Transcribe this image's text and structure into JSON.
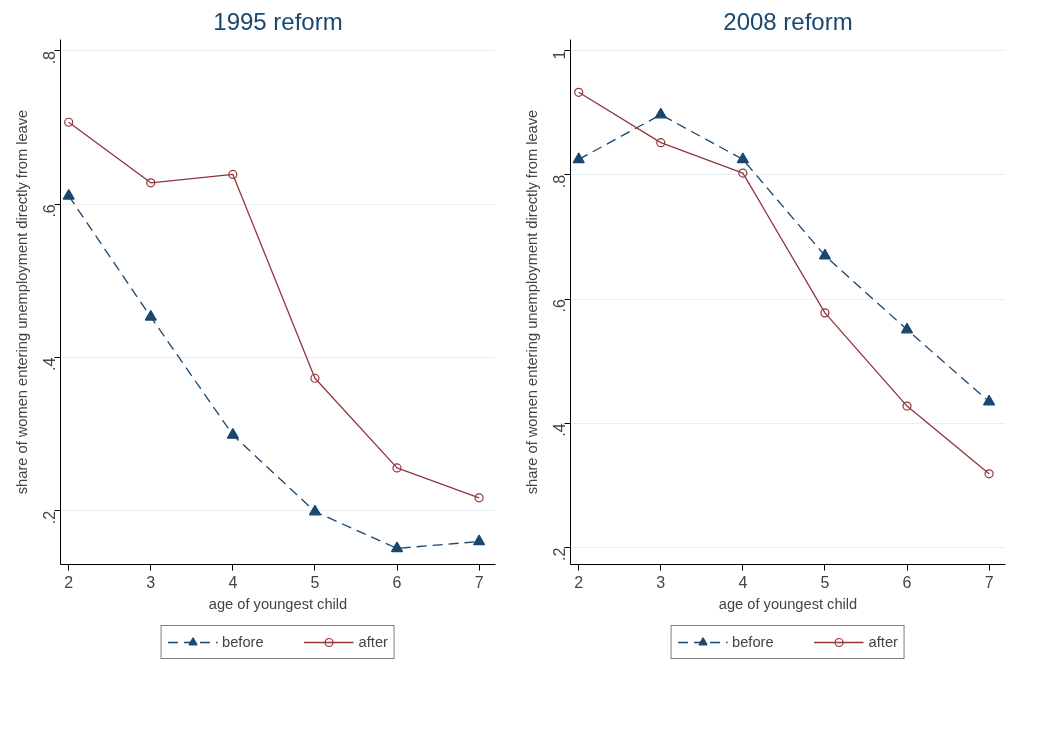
{
  "chart_data": [
    {
      "type": "line",
      "title": "1995 reform",
      "xlabel": "age of youngest child",
      "ylabel": "share of women entering unemployment directly from leave",
      "x": [
        2,
        3,
        4,
        5,
        6,
        7
      ],
      "xlim": [
        1.9,
        7.2
      ],
      "xticks": [
        2,
        3,
        4,
        5,
        6,
        7
      ],
      "ylim": [
        0.13,
        0.815
      ],
      "yticks": [
        {
          "value": 0.2,
          "label": ".2"
        },
        {
          "value": 0.4,
          "label": ".4"
        },
        {
          "value": 0.6,
          "label": ".6"
        },
        {
          "value": 0.8,
          "label": ".8"
        }
      ],
      "grid": "y",
      "legend": "bottom",
      "series": [
        {
          "name": "before",
          "color": "#1a476f",
          "marker": "triangle",
          "line_style": "dashed",
          "values": [
            0.611,
            0.453,
            0.299,
            0.199,
            0.151,
            0.16
          ]
        },
        {
          "name": "after",
          "color": "#90353b",
          "marker": "circle",
          "line_style": "solid",
          "values": [
            0.707,
            0.628,
            0.639,
            0.373,
            0.256,
            0.217
          ]
        }
      ]
    },
    {
      "type": "line",
      "title": "2008 reform",
      "xlabel": "age of youngest child",
      "ylabel": "share of women entering unemployment directly from leave",
      "x": [
        2,
        3,
        4,
        5,
        6,
        7
      ],
      "xlim": [
        1.9,
        7.2
      ],
      "xticks": [
        2,
        3,
        4,
        5,
        6,
        7
      ],
      "ylim": [
        0.173,
        1.018
      ],
      "yticks": [
        {
          "value": 0.2,
          "label": ".2"
        },
        {
          "value": 0.4,
          "label": ".4"
        },
        {
          "value": 0.6,
          "label": ".6"
        },
        {
          "value": 0.8,
          "label": ".8"
        },
        {
          "value": 1,
          "label": "1"
        }
      ],
      "grid": "y",
      "legend": "bottom",
      "series": [
        {
          "name": "before",
          "color": "#1a476f",
          "marker": "triangle",
          "line_style": "dashed",
          "values": [
            0.825,
            0.897,
            0.825,
            0.67,
            0.551,
            0.435
          ]
        },
        {
          "name": "after",
          "color": "#90353b",
          "marker": "circle",
          "line_style": "solid",
          "values": [
            0.933,
            0.852,
            0.803,
            0.578,
            0.428,
            0.319
          ]
        }
      ]
    }
  ]
}
